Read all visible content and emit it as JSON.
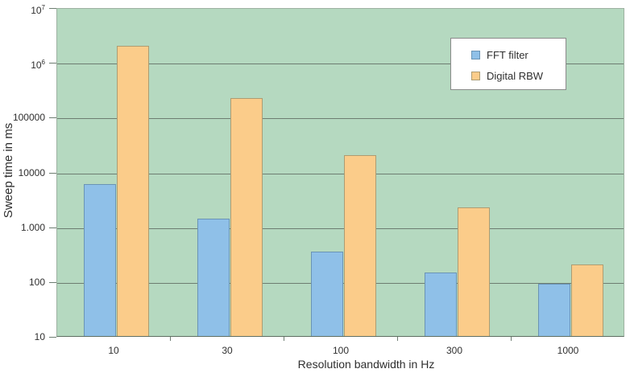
{
  "chart_data": {
    "type": "bar",
    "title": "",
    "xlabel": "Resolution bandwidth in Hz",
    "ylabel": "Sweep time in ms",
    "y_scale": "log",
    "ylim": [
      10,
      10000000
    ],
    "y_tick_labels": [
      "10",
      "100",
      "1.000",
      "10000",
      "100000",
      "10^6",
      "10^7"
    ],
    "categories": [
      "10",
      "30",
      "100",
      "300",
      "1000"
    ],
    "series": [
      {
        "name": "FFT filter",
        "values": [
          6000,
          1400,
          350,
          145,
          90
        ],
        "color": "#8fc0e8",
        "border_color": "#6a94b5"
      },
      {
        "name": "Digital RBW",
        "values": [
          2000000,
          220000,
          20000,
          2200,
          200
        ],
        "color": "#fbcc8a",
        "border_color": "#ad9c72"
      }
    ],
    "grid": true,
    "legend_position": "top-right"
  },
  "colors": {
    "plot_background": "#b5d9c0",
    "gridline": "#6d7d71",
    "plot_border": "#9db1a1",
    "axis_line": "#5e6e62",
    "tick_mark": "#6d7d71",
    "text": "#2f2f2f",
    "legend_border": "#8a8a8a",
    "legend_background": "#ffffff",
    "page_background": "#ffffff"
  }
}
